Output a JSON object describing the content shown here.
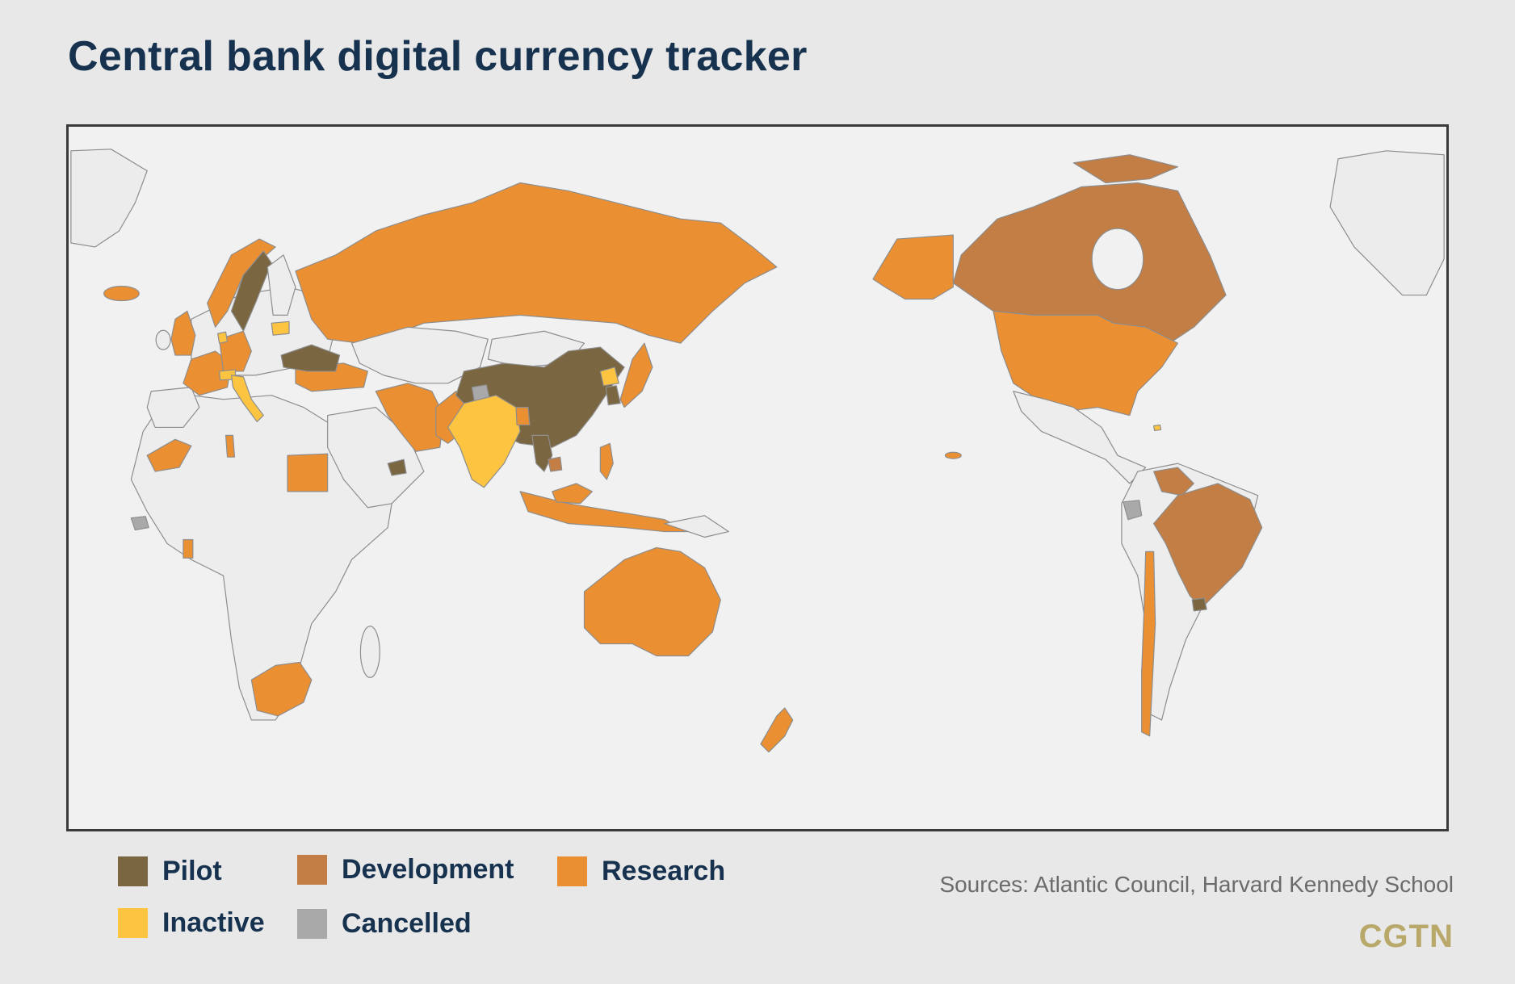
{
  "title": "Central bank digital currency tracker",
  "legend": {
    "pilot": {
      "label": "Pilot",
      "color": "#7a6640"
    },
    "development": {
      "label": "Development",
      "color": "#c27e44"
    },
    "research": {
      "label": "Research",
      "color": "#eb8f33"
    },
    "inactive": {
      "label": "Inactive",
      "color": "#fdc441"
    },
    "cancelled": {
      "label": "Cancelled",
      "color": "#a9a9a9"
    }
  },
  "land_color": "#ededed",
  "sources": "Sources: Atlantic Council, Harvard Kennedy School",
  "logo": "CGTN"
}
